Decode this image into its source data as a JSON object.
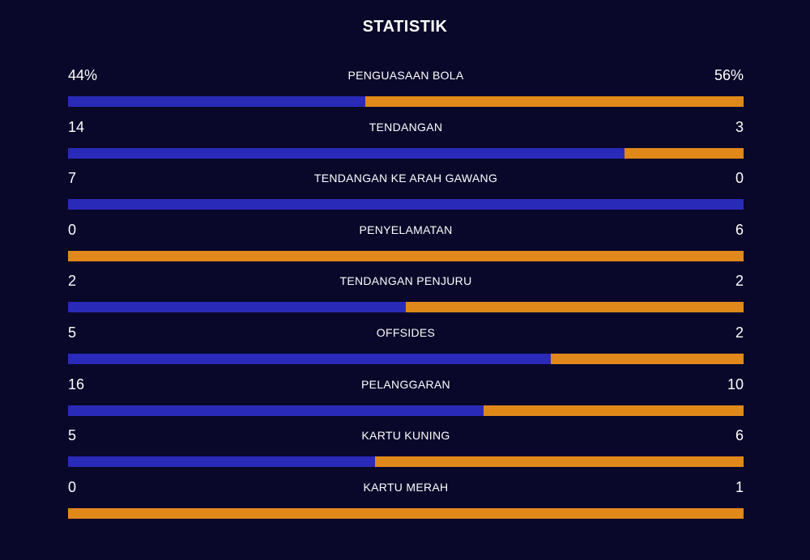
{
  "title": "STATISTIK",
  "colors": {
    "background": "#09082a",
    "home": "#2a2ab8",
    "away": "#e0891a",
    "text": "#ffffff"
  },
  "stats": [
    {
      "label": "PENGUASAAN BOLA",
      "home": "44%",
      "away": "56%",
      "home_share": 0.44
    },
    {
      "label": "TENDANGAN",
      "home": "14",
      "away": "3",
      "home_share": 0.8235
    },
    {
      "label": "TENDANGAN KE ARAH GAWANG",
      "home": "7",
      "away": "0",
      "home_share": 1.0
    },
    {
      "label": "PENYELAMATAN",
      "home": "0",
      "away": "6",
      "home_share": 0.0
    },
    {
      "label": "TENDANGAN PENJURU",
      "home": "2",
      "away": "2",
      "home_share": 0.5
    },
    {
      "label": "OFFSIDES",
      "home": "5",
      "away": "2",
      "home_share": 0.7143
    },
    {
      "label": "PELANGGARAN",
      "home": "16",
      "away": "10",
      "home_share": 0.6154
    },
    {
      "label": "KARTU KUNING",
      "home": "5",
      "away": "6",
      "home_share": 0.4545
    },
    {
      "label": "KARTU MERAH",
      "home": "0",
      "away": "1",
      "home_share": 0.0
    }
  ]
}
